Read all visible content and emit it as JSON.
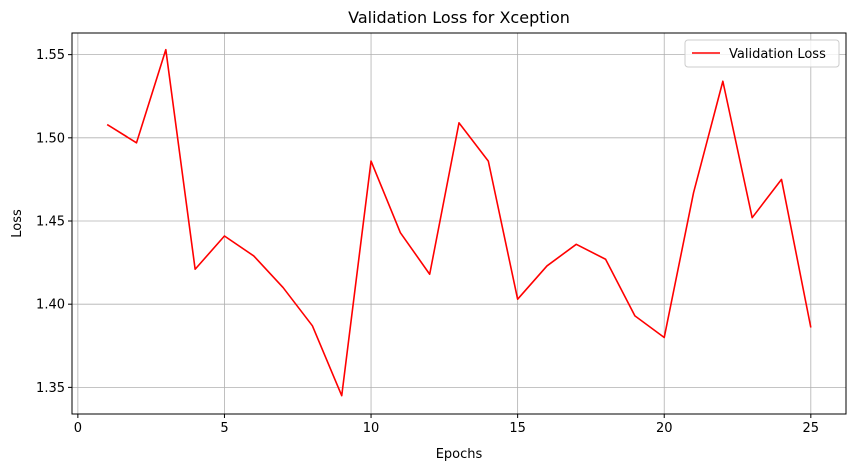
{
  "chart_data": {
    "type": "line",
    "title": "Validation Loss for Xception",
    "xlabel": "Epochs",
    "ylabel": "Loss",
    "xlim": [
      -0.2,
      26.2
    ],
    "ylim": [
      1.334,
      1.563
    ],
    "xticks": [
      0,
      5,
      10,
      15,
      20,
      25
    ],
    "yticks": [
      1.35,
      1.4,
      1.45,
      1.5,
      1.55
    ],
    "ytick_labels": [
      "1.35",
      "1.40",
      "1.45",
      "1.50",
      "1.55"
    ],
    "grid": true,
    "legend_position": "top-right",
    "series": [
      {
        "name": "Validation Loss",
        "color": "#ff0000",
        "x": [
          1,
          2,
          3,
          4,
          5,
          6,
          7,
          8,
          9,
          10,
          11,
          12,
          13,
          14,
          15,
          16,
          17,
          18,
          19,
          20,
          21,
          22,
          23,
          24,
          25
        ],
        "y": [
          1.508,
          1.497,
          1.553,
          1.421,
          1.441,
          1.429,
          1.41,
          1.387,
          1.345,
          1.486,
          1.443,
          1.418,
          1.509,
          1.486,
          1.403,
          1.423,
          1.436,
          1.427,
          1.393,
          1.38,
          1.467,
          1.534,
          1.452,
          1.475,
          1.386
        ]
      }
    ]
  }
}
